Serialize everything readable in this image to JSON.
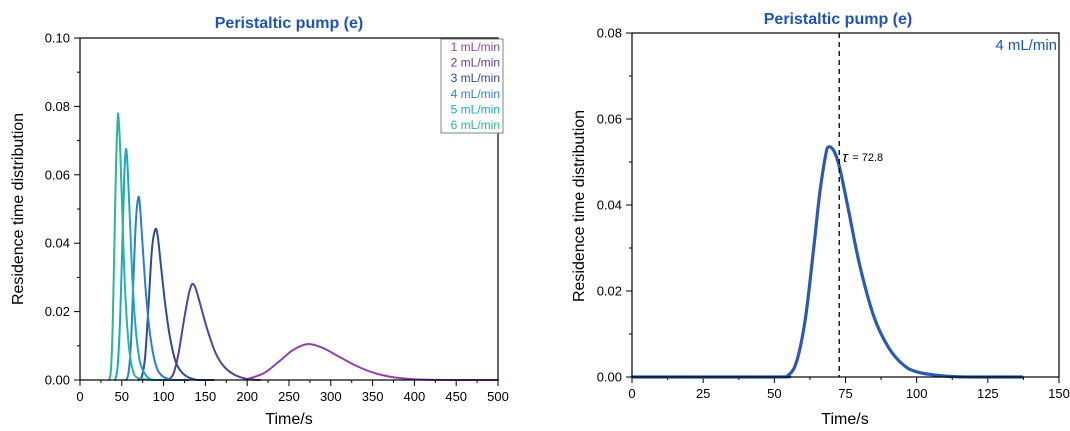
{
  "chart_data": [
    {
      "type": "line",
      "title": "Peristaltic pump (e)",
      "xlabel": "Time/s",
      "ylabel": "Residence time distribution",
      "xlim": [
        0,
        500
      ],
      "ylim": [
        0,
        0.1
      ],
      "xticks": [
        "0",
        "50",
        "100",
        "150",
        "200",
        "250",
        "300",
        "350",
        "400",
        "450",
        "500"
      ],
      "yticks": [
        "0.00",
        "0.02",
        "0.04",
        "0.06",
        "0.08",
        "0.10"
      ],
      "grid": false,
      "legend": "top-right",
      "series": [
        {
          "name": "1 mL/min",
          "color": "#8e44ad",
          "mean": 272.0,
          "peak": 0.0105,
          "points": [
            [
              200,
              0.0003
            ],
            [
              220,
              0.002
            ],
            [
              240,
              0.0058
            ],
            [
              255,
              0.0088
            ],
            [
              272,
              0.0105
            ],
            [
              290,
              0.0094
            ],
            [
              310,
              0.0068
            ],
            [
              330,
              0.0042
            ],
            [
              350,
              0.0022
            ],
            [
              370,
              0.001
            ],
            [
              390,
              0.0004
            ],
            [
              410,
              0.0001
            ],
            [
              450,
              0.0
            ],
            [
              500,
              0.0
            ]
          ]
        },
        {
          "name": "2 mL/min",
          "color": "#5b3f9e",
          "mean": 134.0,
          "peak": 0.028,
          "points": [
            [
              106,
              0.0
            ],
            [
              112,
              0.002
            ],
            [
              118,
              0.008
            ],
            [
              124,
              0.017
            ],
            [
              130,
              0.025
            ],
            [
              134,
              0.028
            ],
            [
              138,
              0.027
            ],
            [
              144,
              0.022
            ],
            [
              152,
              0.015
            ],
            [
              162,
              0.008
            ],
            [
              172,
              0.004
            ],
            [
              185,
              0.0015
            ],
            [
              200,
              0.0003
            ],
            [
              215,
              0.0
            ]
          ]
        },
        {
          "name": "3 mL/min",
          "color": "#2c4a9a",
          "mean": 90.0,
          "peak": 0.044,
          "points": [
            [
              70,
              0.0
            ],
            [
              74,
              0.001
            ],
            [
              78,
              0.007
            ],
            [
              82,
              0.022
            ],
            [
              86,
              0.038
            ],
            [
              90,
              0.044
            ],
            [
              93,
              0.042
            ],
            [
              97,
              0.033
            ],
            [
              102,
              0.022
            ],
            [
              108,
              0.012
            ],
            [
              115,
              0.005
            ],
            [
              125,
              0.0015
            ],
            [
              140,
              0.0
            ],
            [
              160,
              0.0
            ]
          ]
        },
        {
          "name": "4 mL/min",
          "color": "#2f7fc4",
          "mean": 70.0,
          "peak": 0.0535,
          "points": [
            [
              55,
              0.0
            ],
            [
              58,
              0.002
            ],
            [
              61,
              0.011
            ],
            [
              64,
              0.03
            ],
            [
              67,
              0.047
            ],
            [
              70,
              0.0535
            ],
            [
              72,
              0.05
            ],
            [
              75,
              0.039
            ],
            [
              79,
              0.025
            ],
            [
              84,
              0.013
            ],
            [
              90,
              0.005
            ],
            [
              97,
              0.0015
            ],
            [
              110,
              0.0
            ],
            [
              130,
              0.0
            ]
          ]
        },
        {
          "name": "5 mL/min",
          "color": "#1aa8c8",
          "mean": 55.0,
          "peak": 0.0675,
          "points": [
            [
              42,
              0.0
            ],
            [
              45,
              0.004
            ],
            [
              48,
              0.018
            ],
            [
              51,
              0.043
            ],
            [
              53,
              0.06
            ],
            [
              55,
              0.0675
            ],
            [
              57,
              0.062
            ],
            [
              60,
              0.045
            ],
            [
              63,
              0.028
            ],
            [
              67,
              0.014
            ],
            [
              72,
              0.005
            ],
            [
              80,
              0.001
            ],
            [
              90,
              0.0
            ],
            [
              110,
              0.0
            ]
          ]
        },
        {
          "name": "6 mL/min",
          "color": "#2bb59a",
          "mean": 46.0,
          "peak": 0.077,
          "points": [
            [
              35,
              0.0
            ],
            [
              37,
              0.003
            ],
            [
              39,
              0.015
            ],
            [
              41,
              0.038
            ],
            [
              43,
              0.062
            ],
            [
              45,
              0.076
            ],
            [
              46,
              0.077
            ],
            [
              48,
              0.068
            ],
            [
              51,
              0.046
            ],
            [
              54,
              0.026
            ],
            [
              58,
              0.011
            ],
            [
              63,
              0.003
            ],
            [
              70,
              0.0005
            ],
            [
              90,
              0.0
            ]
          ]
        }
      ]
    },
    {
      "type": "line",
      "title": "Peristaltic pump (e)",
      "xlabel": "Time/s",
      "ylabel": "Residence time distribution",
      "xlim": [
        0,
        150
      ],
      "ylim": [
        0,
        0.08
      ],
      "xticks": [
        "0",
        "25",
        "50",
        "75",
        "100",
        "125",
        "150"
      ],
      "yticks": [
        "0.00",
        "0.02",
        "0.04",
        "0.06",
        "0.08"
      ],
      "grid": false,
      "corner_label": "4 mL/min",
      "annotation": {
        "symbol": "τ",
        "text": "= 72.8",
        "x": 72.8
      },
      "series": [
        {
          "name": "",
          "color": "#2b5bb0",
          "mean": 69.0,
          "peak": 0.0535,
          "points": [
            [
              0,
              0.0
            ],
            [
              50,
              0.0
            ],
            [
              55,
              0.0005
            ],
            [
              58,
              0.004
            ],
            [
              61,
              0.014
            ],
            [
              64,
              0.031
            ],
            [
              66,
              0.043
            ],
            [
              68,
              0.0515
            ],
            [
              69,
              0.0535
            ],
            [
              71,
              0.0525
            ],
            [
              73,
              0.0485
            ],
            [
              76,
              0.039
            ],
            [
              80,
              0.026
            ],
            [
              85,
              0.014
            ],
            [
              90,
              0.007
            ],
            [
              95,
              0.003
            ],
            [
              100,
              0.0012
            ],
            [
              110,
              0.0002
            ],
            [
              120,
              0.0
            ],
            [
              137,
              0.0
            ]
          ]
        }
      ]
    }
  ]
}
